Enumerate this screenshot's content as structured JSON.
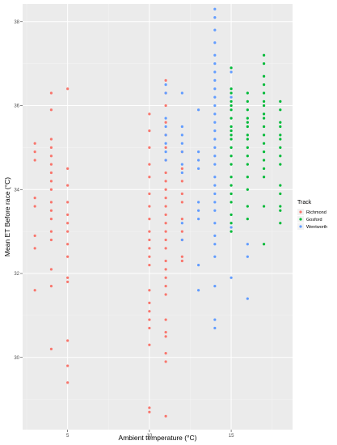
{
  "chart_data": {
    "type": "scatter",
    "xlabel": "Ambient temperature (°C)",
    "ylabel": "Mean ET Before race (°C)",
    "xlim": [
      2.25,
      18.75
    ],
    "ylim": [
      28.28,
      38.42
    ],
    "x_ticks": [
      5,
      10,
      15
    ],
    "y_ticks": [
      30,
      32,
      34,
      36,
      38
    ],
    "grid": true,
    "legend": {
      "title": "Track",
      "placement": "right"
    },
    "series": [
      {
        "name": "Richmond",
        "color": "#F8766D",
        "points": [
          [
            3,
            35.1
          ],
          [
            3,
            34.9
          ],
          [
            3,
            34.7
          ],
          [
            3,
            33.8
          ],
          [
            3,
            33.6
          ],
          [
            3,
            32.9
          ],
          [
            3,
            32.6
          ],
          [
            3,
            31.6
          ],
          [
            4,
            36.3
          ],
          [
            4,
            35.9
          ],
          [
            4,
            35.2
          ],
          [
            4,
            35.0
          ],
          [
            4,
            34.8
          ],
          [
            4,
            34.6
          ],
          [
            4,
            34.4
          ],
          [
            4,
            34.2
          ],
          [
            4,
            34.0
          ],
          [
            4,
            33.7
          ],
          [
            4,
            33.5
          ],
          [
            4,
            33.3
          ],
          [
            4,
            33.0
          ],
          [
            4,
            32.8
          ],
          [
            4,
            32.1
          ],
          [
            4,
            31.7
          ],
          [
            4,
            30.2
          ],
          [
            5,
            36.4
          ],
          [
            5,
            34.5
          ],
          [
            5,
            34.1
          ],
          [
            5,
            33.7
          ],
          [
            5,
            33.4
          ],
          [
            5,
            33.2
          ],
          [
            5,
            33.0
          ],
          [
            5,
            32.7
          ],
          [
            5,
            32.4
          ],
          [
            5,
            31.9
          ],
          [
            5,
            31.8
          ],
          [
            5,
            30.4
          ],
          [
            5,
            29.8
          ],
          [
            5,
            29.4
          ],
          [
            10,
            35.8
          ],
          [
            10,
            35.4
          ],
          [
            10,
            35.0
          ],
          [
            10,
            34.6
          ],
          [
            10,
            34.3
          ],
          [
            10,
            33.9
          ],
          [
            10,
            33.6
          ],
          [
            10,
            33.3
          ],
          [
            10,
            33.0
          ],
          [
            10,
            32.8
          ],
          [
            10,
            32.6
          ],
          [
            10,
            32.4
          ],
          [
            10,
            32.2
          ],
          [
            10,
            31.6
          ],
          [
            10,
            31.3
          ],
          [
            10,
            31.1
          ],
          [
            10,
            30.9
          ],
          [
            10,
            30.7
          ],
          [
            10,
            30.3
          ],
          [
            10,
            28.8
          ],
          [
            10,
            28.7
          ],
          [
            11,
            36.6
          ],
          [
            11,
            36.3
          ],
          [
            11,
            36.0
          ],
          [
            11,
            35.6
          ],
          [
            11,
            35.3
          ],
          [
            11,
            35.0
          ],
          [
            11,
            34.7
          ],
          [
            11,
            34.4
          ],
          [
            11,
            34.2
          ],
          [
            11,
            34.0
          ],
          [
            11,
            33.8
          ],
          [
            11,
            33.6
          ],
          [
            11,
            33.4
          ],
          [
            11,
            33.2
          ],
          [
            11,
            33.0
          ],
          [
            11,
            32.8
          ],
          [
            11,
            32.6
          ],
          [
            11,
            32.3
          ],
          [
            11,
            32.1
          ],
          [
            11,
            31.9
          ],
          [
            11,
            31.7
          ],
          [
            11,
            31.5
          ],
          [
            11,
            30.9
          ],
          [
            11,
            30.6
          ],
          [
            11,
            30.5
          ],
          [
            11,
            30.1
          ],
          [
            11,
            29.9
          ],
          [
            11,
            28.6
          ],
          [
            12,
            34.9
          ],
          [
            12,
            34.5
          ],
          [
            12,
            34.2
          ],
          [
            12,
            33.9
          ],
          [
            12,
            33.7
          ],
          [
            12,
            33.3
          ],
          [
            12,
            33.0
          ],
          [
            12,
            32.8
          ],
          [
            12,
            32.4
          ],
          [
            12,
            32.3
          ]
        ]
      },
      {
        "name": "Gosford",
        "color": "#00BA38",
        "points": [
          [
            15,
            36.9
          ],
          [
            15,
            36.4
          ],
          [
            15,
            36.3
          ],
          [
            15,
            36.1
          ],
          [
            15,
            36.0
          ],
          [
            15,
            35.9
          ],
          [
            15,
            35.7
          ],
          [
            15,
            35.5
          ],
          [
            15,
            35.4
          ],
          [
            15,
            35.3
          ],
          [
            15,
            35.2
          ],
          [
            15,
            35.0
          ],
          [
            15,
            34.8
          ],
          [
            15,
            34.6
          ],
          [
            15,
            34.3
          ],
          [
            15,
            34.1
          ],
          [
            15,
            33.9
          ],
          [
            15,
            33.7
          ],
          [
            15,
            33.4
          ],
          [
            15,
            33.2
          ],
          [
            15,
            33.0
          ],
          [
            16,
            36.3
          ],
          [
            16,
            36.1
          ],
          [
            16,
            35.9
          ],
          [
            16,
            35.7
          ],
          [
            16,
            35.6
          ],
          [
            16,
            35.5
          ],
          [
            16,
            35.3
          ],
          [
            16,
            35.2
          ],
          [
            16,
            35.0
          ],
          [
            16,
            34.8
          ],
          [
            16,
            34.6
          ],
          [
            16,
            34.3
          ],
          [
            16,
            34.0
          ],
          [
            16,
            33.6
          ],
          [
            16,
            33.3
          ],
          [
            17,
            37.2
          ],
          [
            17,
            37.0
          ],
          [
            17,
            36.7
          ],
          [
            17,
            36.5
          ],
          [
            17,
            36.3
          ],
          [
            17,
            36.1
          ],
          [
            17,
            36.0
          ],
          [
            17,
            35.8
          ],
          [
            17,
            35.7
          ],
          [
            17,
            35.5
          ],
          [
            17,
            35.3
          ],
          [
            17,
            35.1
          ],
          [
            17,
            34.9
          ],
          [
            17,
            34.7
          ],
          [
            17,
            34.5
          ],
          [
            17,
            34.3
          ],
          [
            17,
            33.6
          ],
          [
            17,
            32.7
          ],
          [
            18,
            36.1
          ],
          [
            18,
            35.9
          ],
          [
            18,
            35.6
          ],
          [
            18,
            35.5
          ],
          [
            18,
            35.3
          ],
          [
            18,
            35.2
          ],
          [
            18,
            35.0
          ],
          [
            18,
            34.8
          ],
          [
            18,
            34.6
          ],
          [
            18,
            34.1
          ],
          [
            18,
            33.9
          ],
          [
            18,
            33.6
          ],
          [
            18,
            33.5
          ],
          [
            18,
            33.2
          ]
        ]
      },
      {
        "name": "Wentworth",
        "color": "#619CFF",
        "points": [
          [
            11,
            36.5
          ],
          [
            11,
            36.3
          ],
          [
            11,
            35.7
          ],
          [
            11,
            35.5
          ],
          [
            11,
            35.3
          ],
          [
            11,
            35.1
          ],
          [
            11,
            34.9
          ],
          [
            11,
            34.7
          ],
          [
            12,
            36.3
          ],
          [
            12,
            35.5
          ],
          [
            12,
            35.3
          ],
          [
            12,
            35.1
          ],
          [
            12,
            34.9
          ],
          [
            12,
            34.6
          ],
          [
            12,
            34.4
          ],
          [
            12,
            33.2
          ],
          [
            12,
            32.8
          ],
          [
            13,
            35.9
          ],
          [
            13,
            34.9
          ],
          [
            13,
            34.7
          ],
          [
            13,
            34.5
          ],
          [
            13,
            33.7
          ],
          [
            13,
            33.5
          ],
          [
            13,
            33.3
          ],
          [
            13,
            32.2
          ],
          [
            13,
            31.6
          ],
          [
            14,
            38.3
          ],
          [
            14,
            38.1
          ],
          [
            14,
            37.8
          ],
          [
            14,
            37.5
          ],
          [
            14,
            37.2
          ],
          [
            14,
            37.0
          ],
          [
            14,
            36.8
          ],
          [
            14,
            36.6
          ],
          [
            14,
            36.4
          ],
          [
            14,
            36.2
          ],
          [
            14,
            36.0
          ],
          [
            14,
            35.8
          ],
          [
            14,
            35.6
          ],
          [
            14,
            35.4
          ],
          [
            14,
            35.2
          ],
          [
            14,
            35.0
          ],
          [
            14,
            34.8
          ],
          [
            14,
            34.6
          ],
          [
            14,
            34.3
          ],
          [
            14,
            34.1
          ],
          [
            14,
            33.9
          ],
          [
            14,
            33.7
          ],
          [
            14,
            33.5
          ],
          [
            14,
            33.2
          ],
          [
            14,
            32.9
          ],
          [
            14,
            32.7
          ],
          [
            14,
            32.4
          ],
          [
            14,
            31.7
          ],
          [
            14,
            30.9
          ],
          [
            14,
            30.7
          ],
          [
            15,
            36.8
          ],
          [
            15,
            36.2
          ],
          [
            15,
            33.1
          ],
          [
            15,
            31.9
          ],
          [
            16,
            32.7
          ],
          [
            16,
            32.4
          ],
          [
            16,
            31.4
          ]
        ]
      }
    ]
  }
}
